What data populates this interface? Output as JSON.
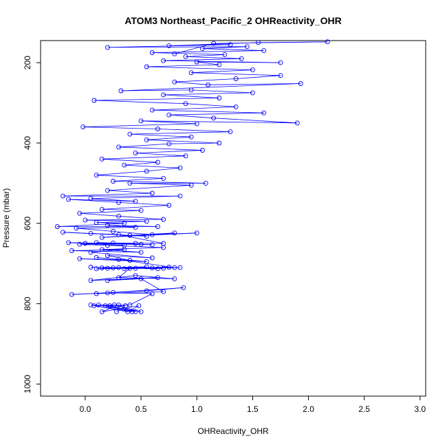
{
  "chart_data": {
    "type": "scatter",
    "title": "ATOM3 Northeast_Pacific_2 OHReactivity_OHR",
    "xlabel": "OHReactivity_OHR",
    "ylabel": "Pressure (mbar)",
    "xlim": [
      -0.4,
      3.05
    ],
    "ylim": [
      1030,
      145
    ],
    "y_inverted": true,
    "x_ticks": [
      0.0,
      0.5,
      1.0,
      1.5,
      2.0,
      2.5,
      3.0
    ],
    "x_tick_labels": [
      "0.0",
      "0.5",
      "1.0",
      "1.5",
      "2.0",
      "2.5",
      "3.0"
    ],
    "y_ticks": [
      200,
      400,
      600,
      800,
      1000
    ],
    "y_tick_labels": [
      "200",
      "400",
      "600",
      "800",
      "1000"
    ],
    "grid": false,
    "legend": "none",
    "series": [
      {
        "color": "#0000ff",
        "marker": "open-circle",
        "line": true,
        "points": [
          [
            0.28,
            820
          ],
          [
            0.36,
            805
          ],
          [
            0.12,
            803
          ],
          [
            0.45,
            820
          ],
          [
            0.22,
            805
          ],
          [
            0.05,
            803
          ],
          [
            0.38,
            820
          ],
          [
            0.48,
            805
          ],
          [
            0.15,
            820
          ],
          [
            0.3,
            803
          ],
          [
            0.42,
            820
          ],
          [
            0.08,
            805
          ],
          [
            0.26,
            803
          ],
          [
            0.5,
            820
          ],
          [
            0.18,
            805
          ],
          [
            0.4,
            803
          ],
          [
            0.6,
            775
          ],
          [
            0.2,
            773
          ],
          [
            -0.12,
            777
          ],
          [
            0.55,
            768
          ],
          [
            0.88,
            760
          ],
          [
            0.25,
            772
          ],
          [
            0.1,
            775
          ],
          [
            0.7,
            770
          ],
          [
            0.5,
            738
          ],
          [
            0.2,
            742
          ],
          [
            0.65,
            735
          ],
          [
            0.05,
            742
          ],
          [
            0.45,
            730
          ],
          [
            0.8,
            738
          ],
          [
            0.3,
            735
          ],
          [
            0.4,
            712
          ],
          [
            0.6,
            711
          ],
          [
            0.1,
            713
          ],
          [
            0.75,
            709
          ],
          [
            0.2,
            712
          ],
          [
            0.85,
            710
          ],
          [
            0.35,
            713
          ],
          [
            0.55,
            708
          ],
          [
            0.15,
            711
          ],
          [
            0.7,
            712
          ],
          [
            0.3,
            710
          ],
          [
            0.65,
            713
          ],
          [
            0.05,
            709
          ],
          [
            0.45,
            712
          ],
          [
            0.25,
            711
          ],
          [
            0.8,
            710
          ],
          [
            0.3,
            690
          ],
          [
            0.1,
            685
          ],
          [
            0.55,
            695
          ],
          [
            -0.05,
            688
          ],
          [
            0.4,
            692
          ],
          [
            0.2,
            680
          ],
          [
            0.6,
            686
          ],
          [
            0.05,
            672
          ],
          [
            0.35,
            665
          ],
          [
            -0.12,
            668
          ],
          [
            0.5,
            672
          ],
          [
            0.15,
            665
          ],
          [
            0.7,
            660
          ],
          [
            0.2,
            655
          ],
          [
            -0.05,
            652
          ],
          [
            0.45,
            650
          ],
          [
            0.1,
            648
          ],
          [
            0.6,
            653
          ],
          [
            0.0,
            650
          ],
          [
            0.35,
            655
          ],
          [
            -0.15,
            648
          ],
          [
            0.5,
            652
          ],
          [
            0.25,
            649
          ],
          [
            0.7,
            650
          ],
          [
            0.3,
            628
          ],
          [
            0.05,
            625
          ],
          [
            0.55,
            632
          ],
          [
            -0.2,
            622
          ],
          [
            0.4,
            630
          ],
          [
            0.8,
            624
          ],
          [
            0.15,
            635
          ],
          [
            1.0,
            624
          ],
          [
            0.6,
            628
          ],
          [
            0.25,
            620
          ],
          [
            -0.08,
            612
          ],
          [
            0.45,
            610
          ],
          [
            0.2,
            605
          ],
          [
            0.65,
            608
          ],
          [
            -0.25,
            608
          ],
          [
            0.35,
            600
          ],
          [
            0.1,
            598
          ],
          [
            0.55,
            595
          ],
          [
            0.0,
            592
          ],
          [
            0.7,
            590
          ],
          [
            0.3,
            582
          ],
          [
            -0.05,
            575
          ],
          [
            0.5,
            568
          ],
          [
            0.15,
            565
          ],
          [
            0.75,
            555
          ],
          [
            0.3,
            548
          ],
          [
            -0.15,
            540
          ],
          [
            0.45,
            545
          ],
          [
            0.05,
            538
          ],
          [
            0.85,
            532
          ],
          [
            -0.2,
            532
          ],
          [
            0.6,
            525
          ],
          [
            0.2,
            518
          ],
          [
            0.95,
            505
          ],
          [
            0.4,
            500
          ],
          [
            1.08,
            500
          ],
          [
            0.25,
            495
          ],
          [
            0.7,
            488
          ],
          [
            0.1,
            480
          ],
          [
            0.55,
            470
          ],
          [
            0.85,
            462
          ],
          [
            0.35,
            455
          ],
          [
            0.65,
            448
          ],
          [
            0.15,
            440
          ],
          [
            0.9,
            432
          ],
          [
            0.45,
            425
          ],
          [
            1.05,
            418
          ],
          [
            0.3,
            410
          ],
          [
            0.75,
            402
          ],
          [
            1.2,
            400
          ],
          [
            0.55,
            392
          ],
          [
            0.95,
            385
          ],
          [
            0.4,
            378
          ],
          [
            1.3,
            372
          ],
          [
            0.65,
            365
          ],
          [
            -0.02,
            360
          ],
          [
            1.0,
            352
          ],
          [
            0.5,
            345
          ],
          [
            1.9,
            350
          ],
          [
            1.15,
            338
          ],
          [
            0.75,
            330
          ],
          [
            1.6,
            325
          ],
          [
            0.6,
            318
          ],
          [
            1.35,
            310
          ],
          [
            0.9,
            302
          ],
          [
            0.08,
            294
          ],
          [
            1.2,
            288
          ],
          [
            0.7,
            280
          ],
          [
            1.5,
            275
          ],
          [
            0.95,
            268
          ],
          [
            0.32,
            270
          ],
          [
            1.93,
            252
          ],
          [
            1.1,
            255
          ],
          [
            0.8,
            248
          ],
          [
            1.35,
            240
          ],
          [
            1.75,
            232
          ],
          [
            0.95,
            225
          ],
          [
            1.5,
            218
          ],
          [
            0.55,
            210
          ],
          [
            1.2,
            205
          ],
          [
            1.0,
            198
          ],
          [
            1.75,
            200
          ],
          [
            0.7,
            195
          ],
          [
            1.4,
            190
          ],
          [
            0.9,
            185
          ],
          [
            1.25,
            180
          ],
          [
            0.6,
            175
          ],
          [
            1.6,
            170
          ],
          [
            1.05,
            165
          ],
          [
            1.45,
            160
          ],
          [
            0.2,
            162
          ],
          [
            1.3,
            155
          ],
          [
            0.75,
            158
          ],
          [
            1.55,
            150
          ],
          [
            2.17,
            148
          ],
          [
            1.15,
            152
          ],
          [
            0.8,
            178
          ]
        ]
      }
    ]
  }
}
